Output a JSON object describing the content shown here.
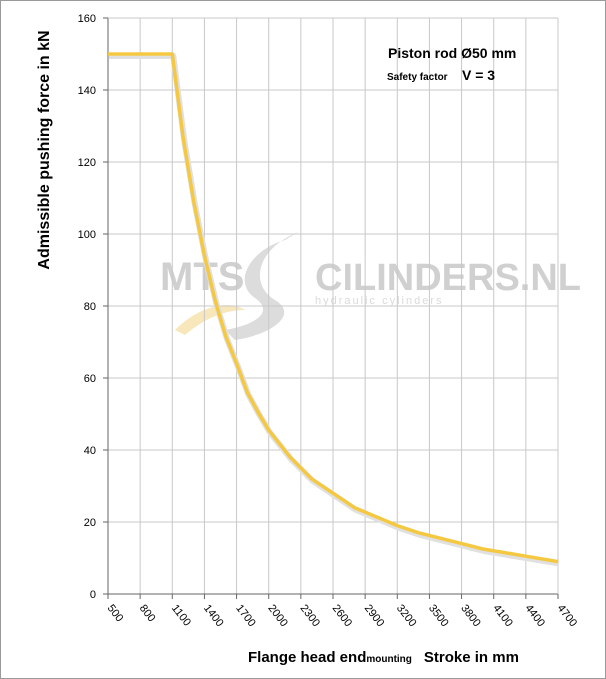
{
  "chart_data": {
    "type": "line",
    "ylabel": "Admissible pushing force in kN",
    "xlabel": {
      "part1": "Flange head end",
      "part2": "mounting",
      "part3": "Stroke in mm"
    },
    "annotation": {
      "line1": "Piston rod Ø50 mm",
      "line2_small": "Safety factor",
      "line2_big": "V = 3"
    },
    "x_ticks": [
      500,
      800,
      1100,
      1400,
      1700,
      2000,
      2300,
      2600,
      2900,
      3200,
      3500,
      3800,
      4100,
      4400,
      4700
    ],
    "xlim": [
      500,
      4700
    ],
    "y_ticks": [
      0,
      20,
      40,
      60,
      80,
      100,
      120,
      140,
      160
    ],
    "ylim": [
      0,
      160
    ],
    "grid": true,
    "series": [
      {
        "color": "#f5c842",
        "x": [
          500,
          1100,
          1200,
          1300,
          1400,
          1500,
          1600,
          1700,
          1800,
          1900,
          2000,
          2200,
          2400,
          2600,
          2800,
          3000,
          3200,
          3400,
          3600,
          3800,
          4000,
          4200,
          4400,
          4700
        ],
        "y": [
          150,
          150,
          127,
          109,
          94,
          81.5,
          71.5,
          64,
          56,
          50.5,
          45.5,
          38,
          32,
          28,
          24,
          21.5,
          19,
          17,
          15.5,
          14,
          12.5,
          11.5,
          10.5,
          9
        ]
      }
    ]
  },
  "watermark": {
    "brand_left": "MTS",
    "brand_right": "CILINDERS.NL",
    "tagline": "hydraulic cylinders"
  }
}
